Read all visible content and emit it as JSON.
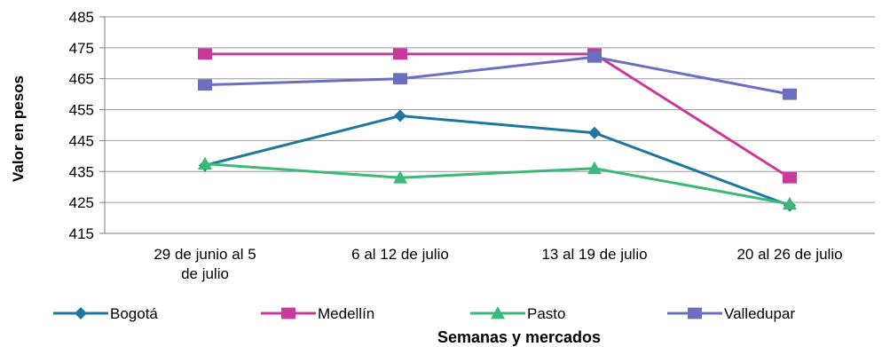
{
  "chart_data": {
    "type": "line",
    "title": "",
    "xlabel": "Semanas y mercados",
    "ylabel": "Valor en pesos",
    "ylim": [
      415,
      485
    ],
    "yticks": [
      415,
      425,
      435,
      445,
      455,
      465,
      475,
      485
    ],
    "grid": true,
    "legend_position": "bottom",
    "categories": [
      [
        "29 de junio al 5",
        "de julio"
      ],
      [
        "6 al 12 de julio"
      ],
      [
        "13 al 19 de julio"
      ],
      [
        "20 al 26 de julio"
      ]
    ],
    "series": [
      {
        "name": "Bogotá",
        "color": "#1f77a0",
        "marker": "diamond",
        "values": [
          437,
          453,
          447.5,
          424
        ]
      },
      {
        "name": "Medellín",
        "color": "#c8399b",
        "marker": "square",
        "values": [
          473,
          473,
          473,
          433
        ]
      },
      {
        "name": "Pasto",
        "color": "#3cb878",
        "marker": "triangle",
        "values": [
          437.5,
          433,
          436,
          424.5
        ]
      },
      {
        "name": "Valledupar",
        "color": "#6a6fbf",
        "marker": "square",
        "values": [
          463,
          465,
          472,
          460
        ]
      }
    ]
  }
}
